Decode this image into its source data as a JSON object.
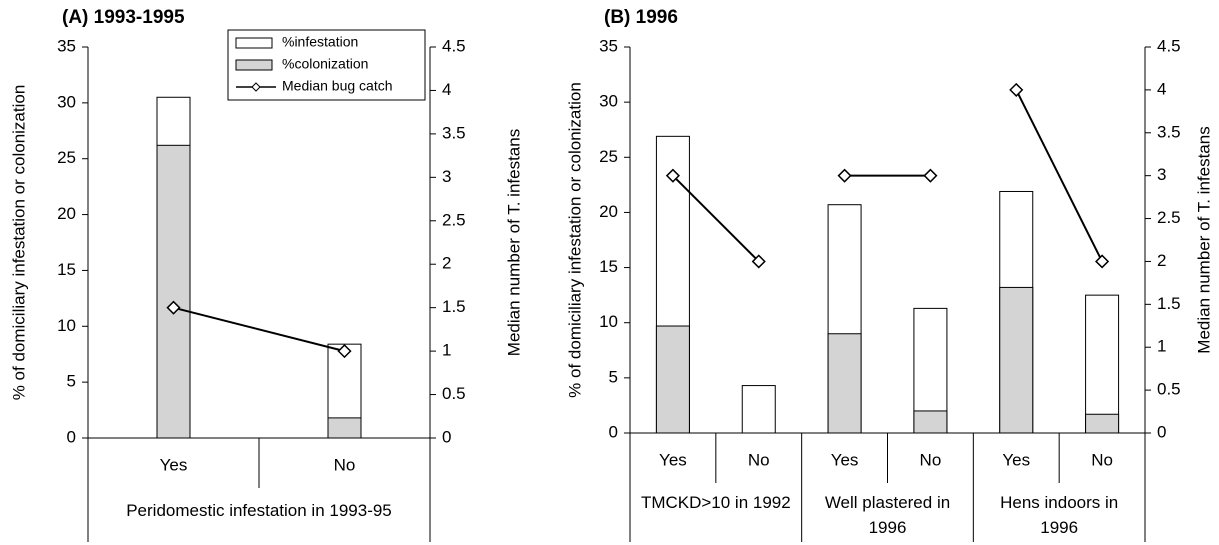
{
  "chart_data": [
    {
      "type": "bar",
      "title": "(A) 1993-1995",
      "ylabel": "% of domiciliary infestation or colonization",
      "y2label": "Median number of T. infestans",
      "categories": [
        "Yes",
        "No"
      ],
      "group_labels": [
        "Peridomestic infestation in 1993-95"
      ],
      "series": [
        {
          "name": "%infestation",
          "type": "bar",
          "color": "#ffffff",
          "values": [
            30.5,
            8.4
          ]
        },
        {
          "name": "%colonization",
          "type": "bar",
          "color": "#d4d4d4",
          "values": [
            26.2,
            1.8
          ]
        },
        {
          "name": "Median bug catch",
          "type": "line",
          "axis": "y2",
          "color": "#000000",
          "values": [
            1.5,
            1.0
          ]
        }
      ],
      "ylim": [
        0,
        35
      ],
      "yticks": [
        0,
        5,
        10,
        15,
        20,
        25,
        30,
        35
      ],
      "y2lim": [
        0,
        4.5
      ],
      "y2ticks": [
        0,
        0.5,
        1,
        1.5,
        2,
        2.5,
        3,
        3.5,
        4,
        4.5
      ],
      "legend": "top-right"
    },
    {
      "type": "bar",
      "title": "(B) 1996",
      "ylabel": "% of domiciliary infestation or colonization",
      "y2label": "Median number of T. infestans",
      "categories": [
        "Yes",
        "No",
        "Yes",
        "No",
        "Yes",
        "No"
      ],
      "group_labels": [
        "TMCKD>10 in 1992",
        "Well plastered in 1996",
        "Hens indoors in 1996"
      ],
      "series": [
        {
          "type": "bar",
          "color": "#ffffff",
          "values": [
            26.9,
            4.3,
            20.7,
            11.3,
            21.9,
            12.5
          ]
        },
        {
          "type": "bar",
          "color": "#d4d4d4",
          "values": [
            9.7,
            0,
            9.0,
            2.0,
            13.2,
            1.7
          ]
        },
        {
          "type": "line",
          "axis": "y2",
          "color": "#000000",
          "values": [
            3,
            2,
            3,
            3,
            4,
            2
          ]
        }
      ],
      "ylim": [
        0,
        35
      ],
      "yticks": [
        0,
        5,
        10,
        15,
        20,
        25,
        30,
        35
      ],
      "y2lim": [
        0,
        4.5
      ],
      "y2ticks": [
        0,
        0.5,
        1,
        1.5,
        2,
        2.5,
        3,
        3.5,
        4,
        4.5
      ]
    }
  ]
}
